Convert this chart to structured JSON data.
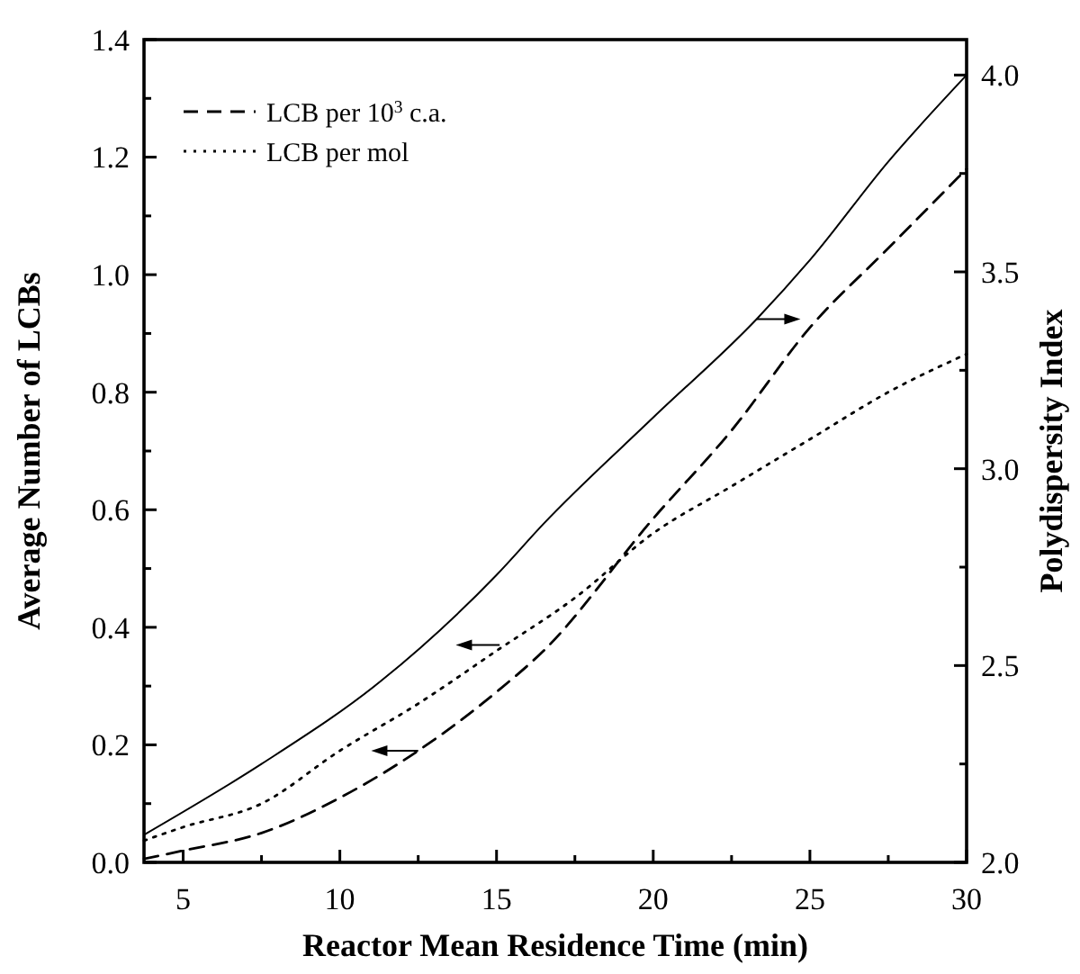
{
  "chart_data": {
    "type": "line",
    "xlabel": "Reactor Mean Residence Time (min)",
    "ylabel": "Average Number of LCBs",
    "y2label": "Polydispersity Index",
    "xlim": [
      3.75,
      30
    ],
    "xticks": [
      5,
      {
        "value": 7.5,
        "label": null
      },
      10,
      {
        "value": 12.5,
        "label": null
      },
      15,
      {
        "value": 17.5,
        "label": null
      },
      20,
      {
        "value": 22.5,
        "label": null
      },
      25,
      {
        "value": 27.5,
        "label": null
      },
      30
    ],
    "ylim": [
      0,
      1.4
    ],
    "yticks": [
      {
        "value": 0,
        "label": "0.0"
      },
      {
        "value": 0.1,
        "label": null
      },
      0.2,
      {
        "value": 0.3,
        "label": null
      },
      0.4,
      {
        "value": 0.5,
        "label": null
      },
      0.6,
      {
        "value": 0.7,
        "label": null
      },
      0.8,
      {
        "value": 0.9,
        "label": null
      },
      {
        "value": 1,
        "label": "1.0"
      },
      {
        "value": 1.1,
        "label": null
      },
      1.2,
      {
        "value": 1.3,
        "label": null
      },
      1.4
    ],
    "y2lim": [
      2,
      4.09
    ],
    "y2ticks": [
      {
        "value": 2,
        "label": "2.0"
      },
      {
        "value": 2.25,
        "label": null
      },
      2.5,
      {
        "value": 2.75,
        "label": null
      },
      {
        "value": 3,
        "label": "3.0"
      },
      {
        "value": 3.25,
        "label": null
      },
      3.5,
      {
        "value": 3.75,
        "label": null
      },
      {
        "value": 4,
        "label": "4.0"
      }
    ],
    "legend": "top left",
    "grid": false,
    "series": [
      {
        "name": "LCB per 10$^{3}$ c.a.",
        "color": "#000000",
        "line_style": "dashed",
        "x": [
          3.75,
          5,
          7.5,
          10,
          12.5,
          15,
          16.5,
          20,
          22.5,
          25,
          27.5,
          30
        ],
        "values": [
          0.006,
          0.02,
          0.05,
          0.11,
          0.19,
          0.29,
          0.36,
          0.585,
          0.735,
          0.91,
          1.045,
          1.18
        ]
      },
      {
        "name": "LCB per mol",
        "color": "#000000",
        "line_style": "dotted",
        "x": [
          3.75,
          5,
          7.5,
          10,
          12.5,
          15,
          17.5,
          20,
          22.5,
          25,
          27.5,
          30
        ],
        "values": [
          0.037,
          0.06,
          0.1,
          0.19,
          0.27,
          0.36,
          0.45,
          0.56,
          0.64,
          0.72,
          0.8,
          0.865
        ]
      },
      {
        "color": "#000000",
        "line_style": "solid",
        "axis": "y2",
        "x": [
          3.75,
          7.5,
          11.3,
          15,
          16.5,
          20,
          23.3,
          25,
          27.5,
          30
        ],
        "values": [
          2.07,
          2.25,
          2.46,
          2.73,
          2.86,
          3.13,
          3.38,
          3.53,
          3.78,
          4.0
        ]
      }
    ]
  }
}
